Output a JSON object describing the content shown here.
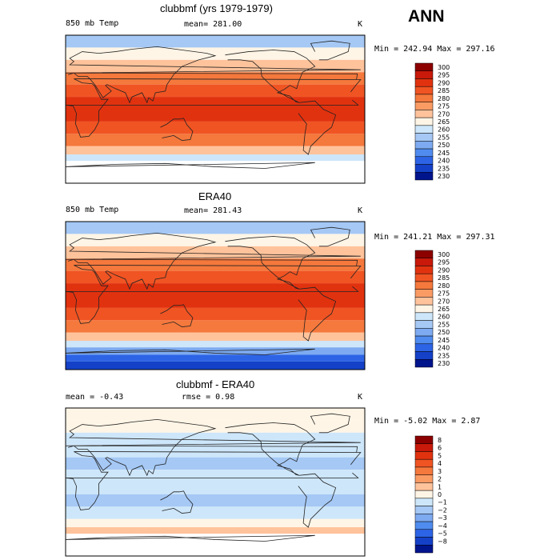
{
  "season": "ANN",
  "chart_data": [
    {
      "type": "heatmap",
      "title": "clubbmf (yrs 1979-1979)",
      "left_label": "850 mb Temp",
      "center_label": "mean= 281.00",
      "units": "K",
      "range_text": "Min = 242.94 Max = 297.16",
      "min": 242.94,
      "max": 297.16,
      "mean": 281.0,
      "levels": [
        300,
        295,
        290,
        285,
        280,
        275,
        270,
        265,
        260,
        255,
        250,
        245,
        240,
        235,
        230
      ],
      "colors": [
        "#8c0000",
        "#c8190a",
        "#e1320f",
        "#f05423",
        "#f5783c",
        "#fa9b64",
        "#ffc39b",
        "#fff5e6",
        "#cde6fa",
        "#a5c8f5",
        "#7daaf0",
        "#508cf0",
        "#2d64e6",
        "#1441c8",
        "#00148c"
      ],
      "bands": [
        {
          "lat_top": 90,
          "lat_bot": 75,
          "value": 258
        },
        {
          "lat_top": 75,
          "lat_bot": 60,
          "value": 266
        },
        {
          "lat_top": 60,
          "lat_bot": 45,
          "value": 274
        },
        {
          "lat_top": 45,
          "lat_bot": 30,
          "value": 283
        },
        {
          "lat_top": 30,
          "lat_bot": 15,
          "value": 288
        },
        {
          "lat_top": 15,
          "lat_bot": -15,
          "value": 292
        },
        {
          "lat_top": -15,
          "lat_bot": -30,
          "value": 288
        },
        {
          "lat_top": -30,
          "lat_bot": -45,
          "value": 281
        },
        {
          "lat_top": -45,
          "lat_bot": -55,
          "value": 272
        },
        {
          "lat_top": -55,
          "lat_bot": -63,
          "value": 262
        },
        {
          "lat_top": -63,
          "lat_bot": -90,
          "value": 300,
          "missing": true
        }
      ]
    },
    {
      "type": "heatmap",
      "title": "ERA40",
      "left_label": "850 mb Temp",
      "center_label": "mean= 281.43",
      "units": "K",
      "range_text": "Min = 241.21 Max = 297.31",
      "min": 241.21,
      "max": 297.31,
      "mean": 281.43,
      "levels": [
        300,
        295,
        290,
        285,
        280,
        275,
        270,
        265,
        260,
        255,
        250,
        245,
        240,
        235,
        230
      ],
      "colors": [
        "#8c0000",
        "#c8190a",
        "#e1320f",
        "#f05423",
        "#f5783c",
        "#fa9b64",
        "#ffc39b",
        "#fff5e6",
        "#cde6fa",
        "#a5c8f5",
        "#7daaf0",
        "#508cf0",
        "#2d64e6",
        "#1441c8",
        "#00148c"
      ],
      "bands": [
        {
          "lat_top": 90,
          "lat_bot": 75,
          "value": 258
        },
        {
          "lat_top": 75,
          "lat_bot": 60,
          "value": 265
        },
        {
          "lat_top": 60,
          "lat_bot": 45,
          "value": 274
        },
        {
          "lat_top": 45,
          "lat_bot": 30,
          "value": 283
        },
        {
          "lat_top": 30,
          "lat_bot": 15,
          "value": 289
        },
        {
          "lat_top": 15,
          "lat_bot": -15,
          "value": 293
        },
        {
          "lat_top": -15,
          "lat_bot": -30,
          "value": 289
        },
        {
          "lat_top": -30,
          "lat_bot": -45,
          "value": 281
        },
        {
          "lat_top": -45,
          "lat_bot": -55,
          "value": 272
        },
        {
          "lat_top": -55,
          "lat_bot": -63,
          "value": 262
        },
        {
          "lat_top": -63,
          "lat_bot": -72,
          "value": 252
        },
        {
          "lat_top": -72,
          "lat_bot": -80,
          "value": 244
        },
        {
          "lat_top": -80,
          "lat_bot": -90,
          "value": 237
        }
      ]
    },
    {
      "type": "heatmap",
      "title": "clubbmf - ERA40",
      "left_label": "mean =   -0.43",
      "center_label": "rmse =   0.98",
      "units": "K",
      "range_text": "Min =  -5.02 Max =   2.87",
      "min": -5.02,
      "max": 2.87,
      "mean": -0.43,
      "rmse": 0.98,
      "levels": [
        8,
        6,
        5,
        4,
        3,
        2,
        1,
        0,
        -1,
        -2,
        -3,
        -4,
        -5,
        -8
      ],
      "colors": [
        "#8c0000",
        "#c8190a",
        "#e1320f",
        "#f05423",
        "#f5783c",
        "#fa9b64",
        "#ffc39b",
        "#fff5e6",
        "#cde6fa",
        "#a5c8f5",
        "#7daaf0",
        "#508cf0",
        "#2d64e6",
        "#1441c8",
        "#00148c"
      ],
      "bands": [
        {
          "lat_top": 90,
          "lat_bot": 75,
          "value": 0.5
        },
        {
          "lat_top": 75,
          "lat_bot": 60,
          "value": 0.5
        },
        {
          "lat_top": 60,
          "lat_bot": 45,
          "value": -0.5
        },
        {
          "lat_top": 45,
          "lat_bot": 30,
          "value": -0.5
        },
        {
          "lat_top": 30,
          "lat_bot": 15,
          "value": -1.5
        },
        {
          "lat_top": 15,
          "lat_bot": -15,
          "value": -0.5
        },
        {
          "lat_top": -15,
          "lat_bot": -30,
          "value": -1.5
        },
        {
          "lat_top": -30,
          "lat_bot": -45,
          "value": -0.5
        },
        {
          "lat_top": -45,
          "lat_bot": -55,
          "value": 0.5
        },
        {
          "lat_top": -55,
          "lat_bot": -63,
          "value": 1.5
        },
        {
          "lat_top": -63,
          "lat_bot": -90,
          "value": 0,
          "missing": true
        }
      ]
    }
  ]
}
